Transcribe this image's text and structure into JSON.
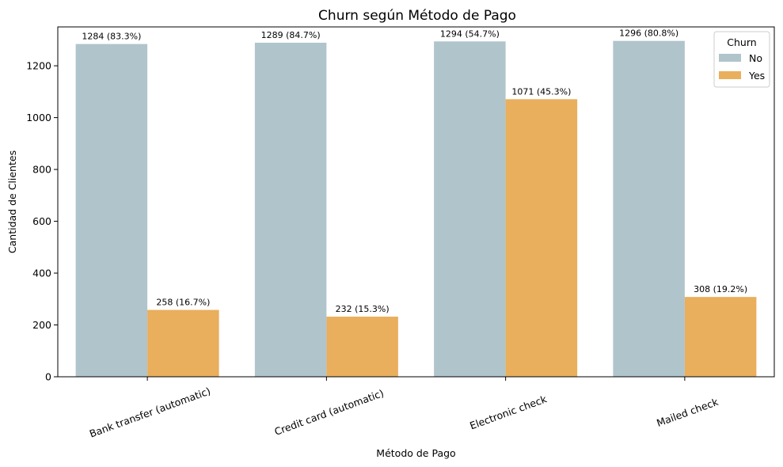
{
  "chart_data": {
    "type": "bar",
    "title": "Churn según Método de Pago",
    "xlabel": "Método de Pago",
    "ylabel": "Cantidad de Clientes",
    "categories": [
      "Bank transfer (automatic)",
      "Credit card (automatic)",
      "Electronic check",
      "Mailed check"
    ],
    "series": [
      {
        "name": "No",
        "color": "#b0c4cb",
        "values": [
          1284,
          1289,
          1294,
          1296
        ],
        "labels": [
          "1284 (83.3%)",
          "1289 (84.7%)",
          "1294 (54.7%)",
          "1296 (80.8%)"
        ]
      },
      {
        "name": "Yes",
        "color": "#e9af5d",
        "values": [
          258,
          232,
          1071,
          308
        ],
        "labels": [
          "258 (16.7%)",
          "232 (15.3%)",
          "1071 (45.3%)",
          "308 (19.2%)"
        ]
      }
    ],
    "ylim": [
      0,
      1350
    ],
    "yticks": [
      0,
      200,
      400,
      600,
      800,
      1000,
      1200
    ],
    "grid": false,
    "legend": {
      "title": "Churn",
      "position": "top-right"
    },
    "xtick_rotation_deg": 20
  }
}
